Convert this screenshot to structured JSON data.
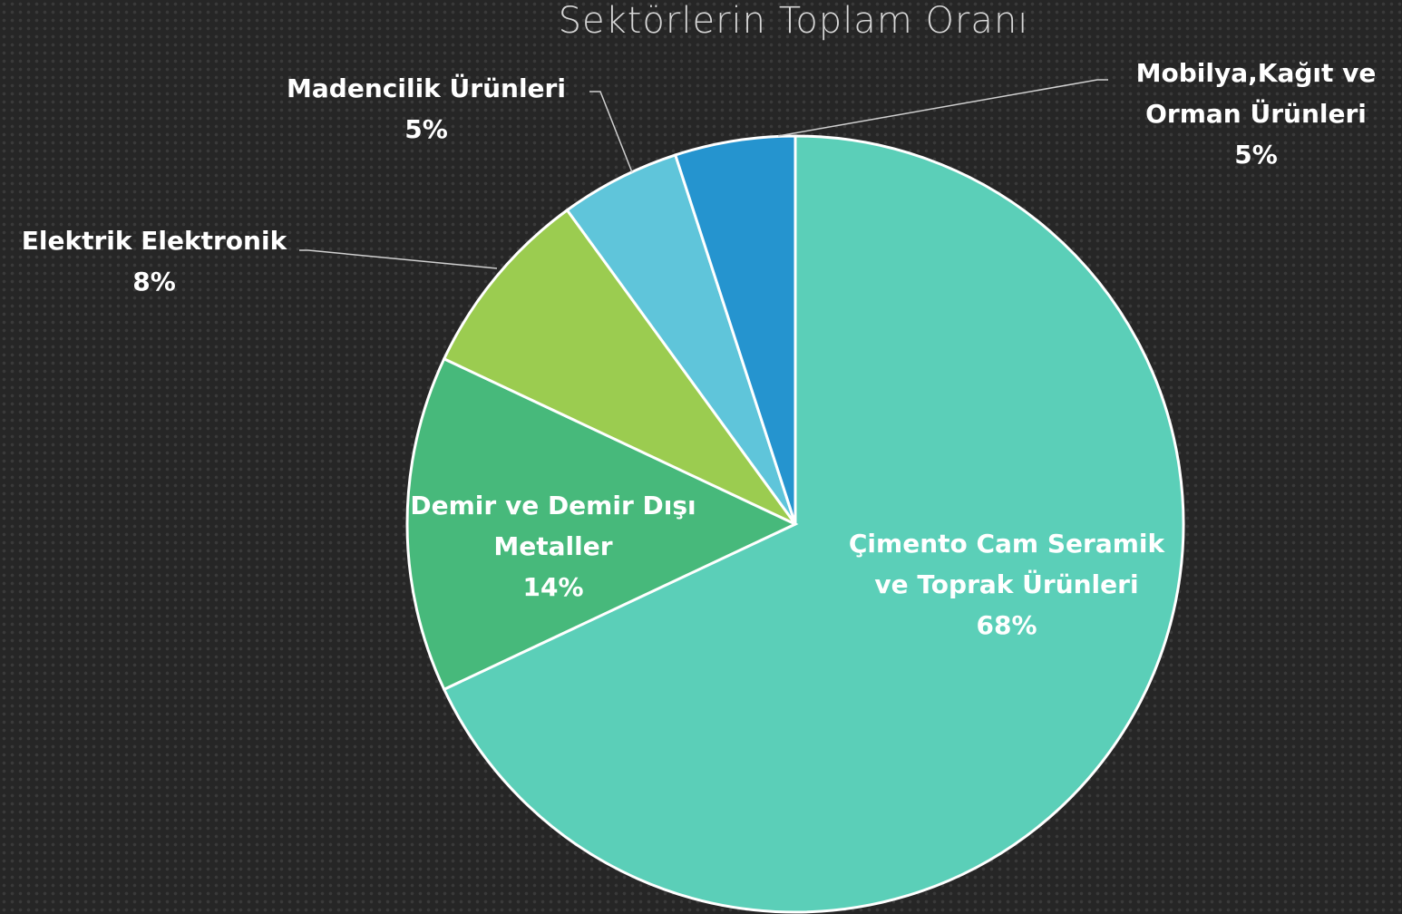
{
  "chart_data": {
    "type": "pie",
    "title": "Sektörlerin Toplam Oranı",
    "categories": [
      "Çimento Cam Seramik ve Toprak Ürünleri",
      "Demir ve Demir Dışı Metaller",
      "Elektrik Elektronik",
      "Madencilik Ürünleri",
      "Mobilya,Kağıt ve Orman Ürünleri"
    ],
    "values": [
      68,
      14,
      8,
      5,
      5
    ],
    "value_labels": [
      "68%",
      "14%",
      "8%",
      "5%",
      "5%"
    ],
    "colors": [
      "#5bcfb8",
      "#47b97b",
      "#9bcc50",
      "#5fc5da",
      "#2594cf"
    ]
  }
}
